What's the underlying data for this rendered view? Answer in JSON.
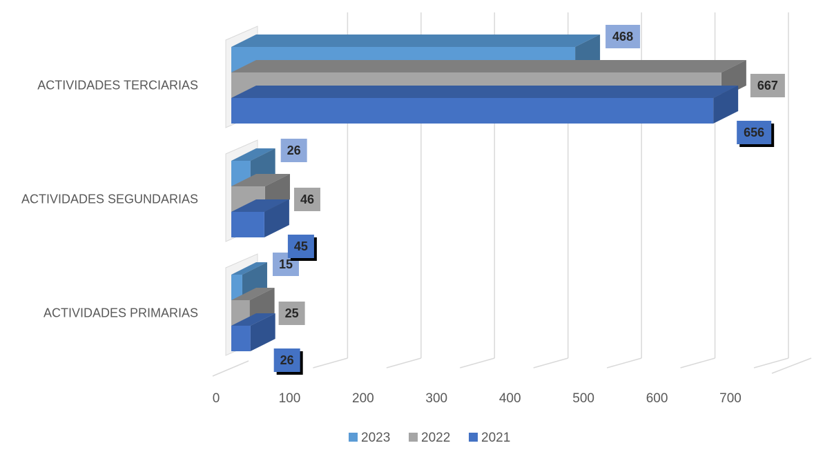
{
  "chart_data": {
    "type": "bar",
    "orientation": "horizontal",
    "style": "3d-clustered",
    "categories": [
      "ACTIVIDADES PRIMARIAS",
      "ACTIVIDADES SEGUNDARIAS",
      "ACTIVIDADES TERCIARIAS"
    ],
    "series": [
      {
        "name": "2023",
        "values": [
          15,
          26,
          468
        ],
        "color": "#5B9BD5",
        "side_color": "#3F6E96",
        "top_color": "#4A82B4",
        "label_bg": "#8EA9DB"
      },
      {
        "name": "2022",
        "values": [
          25,
          46,
          667
        ],
        "color": "#A5A5A5",
        "side_color": "#6E6E6E",
        "top_color": "#7F7F7F",
        "label_bg": "#A5A5A5"
      },
      {
        "name": "2021",
        "values": [
          26,
          45,
          656
        ],
        "color": "#4472C4",
        "side_color": "#2F528F",
        "top_color": "#365C9E",
        "label_bg": "#4472C4"
      }
    ],
    "xlim": [
      0,
      700
    ],
    "x_ticks": [
      0,
      100,
      200,
      300,
      400,
      500,
      600,
      700
    ],
    "title": "",
    "xlabel": "",
    "ylabel": "",
    "grid": true,
    "legend": "bottom"
  }
}
